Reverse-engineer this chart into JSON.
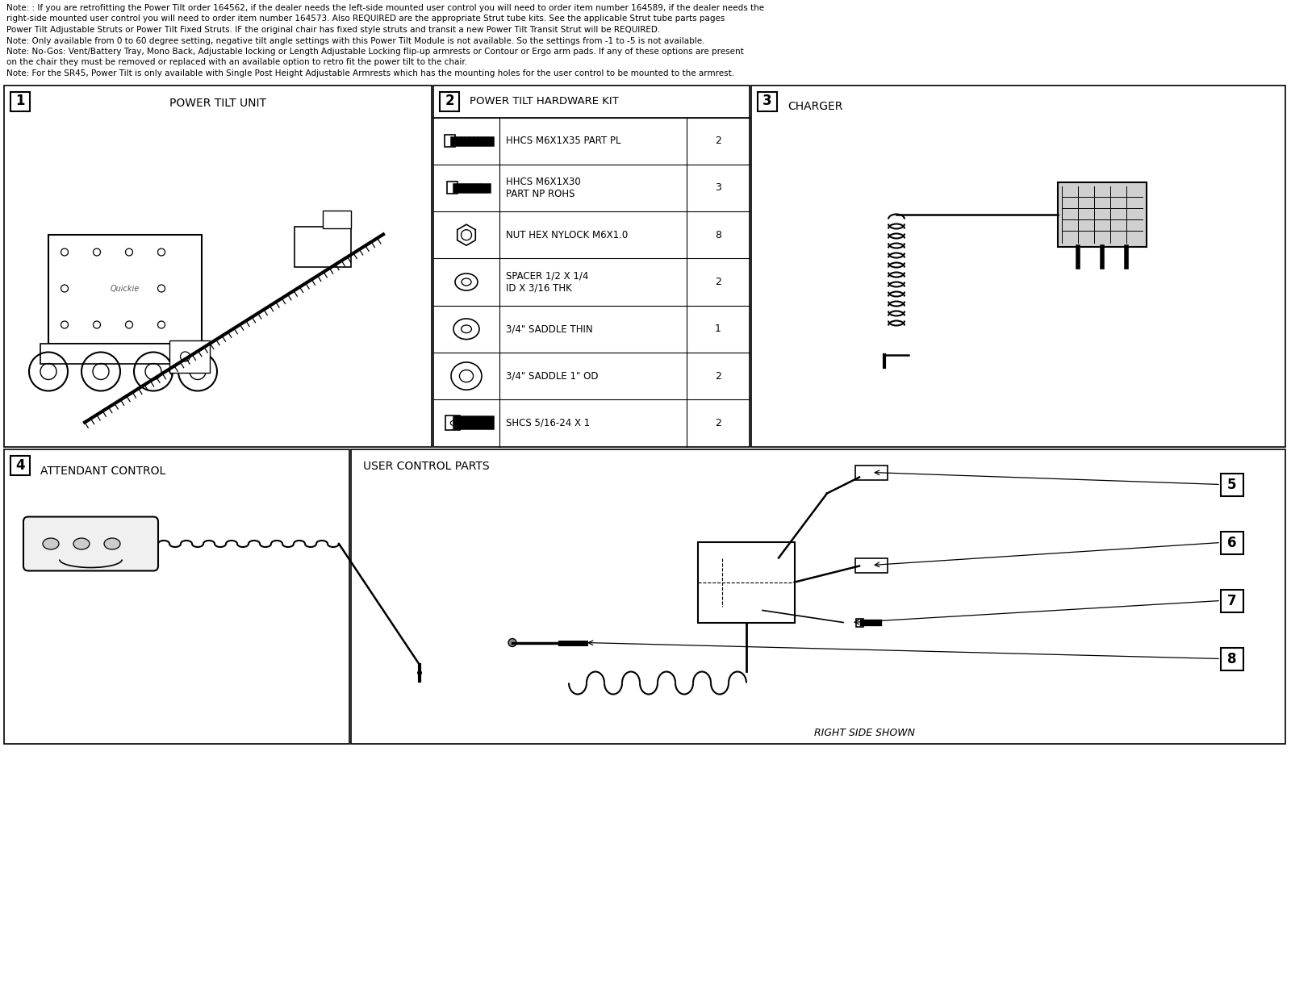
{
  "notes": [
    "Note: : If you are retrofitting the Power Tilt order 164562, if the dealer needs the left-side mounted user control you will need to order item number 164589, if the dealer needs the",
    "right-side mounted user control you will need to order item number 164573. Also REQUIRED are the appropriate Strut tube kits. See the applicable Strut tube parts pages",
    "Power Tilt Adjustable Struts or Power Tilt Fixed Struts. IF the original chair has fixed style struts and transit a new Power Tilt Transit Strut will be REQUIRED.",
    "Note: Only available from 0 to 60 degree setting, negative tilt angle settings with this Power Tilt Module is not available. So the settings from -1 to -5 is not available.",
    "Note: No-Gos: Vent/Battery Tray, Mono Back, Adjustable locking or Length Adjustable Locking flip-up armrests or Contour or Ergo arm pads. If any of these options are present",
    "on the chair they must be removed or replaced with an available option to retro fit the power tilt to the chair.",
    "Note: For the SR45, Power Tilt is only available with Single Post Height Adjustable Armrests which has the mounting holes for the user control to be mounted to the armrest."
  ],
  "section1_title": "POWER TILT UNIT",
  "section2_title": "POWER TILT HARDWARE KIT",
  "section3_title": "CHARGER",
  "section4_title": "ATTENDANT CONTROL",
  "section5_title": "USER CONTROL PARTS",
  "right_side_label": "RIGHT SIDE SHOWN",
  "hardware_parts": [
    {
      "name": "HHCS M6X1X35 PART PL",
      "qty": "2"
    },
    {
      "name": "HHCS M6X1X30\nPART NP ROHS",
      "qty": "3"
    },
    {
      "name": "NUT HEX NYLOCK M6X1.0",
      "qty": "8"
    },
    {
      "name": "SPACER 1/2 X 1/4\nID X 3/16 THK",
      "qty": "2"
    },
    {
      "name": "3/4\" SADDLE THIN",
      "qty": "1"
    },
    {
      "name": "3/4\" SADDLE 1\" OD",
      "qty": "2"
    },
    {
      "name": "SHCS 5/16-24 X 1",
      "qty": "2"
    }
  ],
  "num_boxes_5_8": [
    "5",
    "6",
    "7",
    "8"
  ],
  "bg_color": "#ffffff",
  "border_color": "#000000",
  "text_color": "#000000",
  "font_size_notes": 7.5,
  "font_size_title": 10
}
